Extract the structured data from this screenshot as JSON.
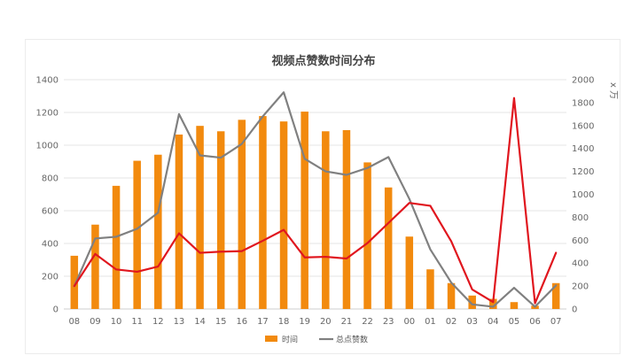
{
  "chart_data": {
    "type": "bar",
    "title": "视频点赞数时间分布",
    "categories": [
      "08",
      "09",
      "10",
      "11",
      "12",
      "13",
      "14",
      "15",
      "16",
      "17",
      "18",
      "19",
      "20",
      "21",
      "22",
      "23",
      "00",
      "01",
      "02",
      "03",
      "04",
      "05",
      "06",
      "07"
    ],
    "left_axis": {
      "ylim": [
        0,
        1400
      ],
      "ticks": [
        0,
        200,
        400,
        600,
        800,
        1000,
        1200,
        1400
      ]
    },
    "right_axis": {
      "ylim": [
        0,
        2000
      ],
      "ticks": [
        0,
        200,
        400,
        600,
        800,
        1000,
        1200,
        1400,
        1600,
        1800,
        2000
      ],
      "unit_label": "x 万"
    },
    "series": [
      {
        "name": "时间",
        "kind": "bar",
        "axis": "left",
        "color": "#f28a0e",
        "values": [
          325,
          515,
          752,
          905,
          942,
          1065,
          1118,
          1085,
          1155,
          1178,
          1145,
          1205,
          1085,
          1092,
          895,
          742,
          442,
          242,
          158,
          82,
          62,
          42,
          20,
          158
        ]
      },
      {
        "name": "总点赞数",
        "kind": "line",
        "axis": "right",
        "color": "#808080",
        "values": [
          200,
          615,
          630,
          700,
          840,
          1700,
          1340,
          1320,
          1440,
          1680,
          1890,
          1310,
          1200,
          1170,
          1230,
          1325,
          960,
          520,
          230,
          40,
          20,
          185,
          20,
          205
        ]
      },
      {
        "kind": "line",
        "axis": "right",
        "color": "#e0161e",
        "values": [
          200,
          480,
          345,
          325,
          370,
          660,
          490,
          500,
          505,
          595,
          690,
          450,
          455,
          440,
          575,
          750,
          925,
          900,
          590,
          170,
          60,
          1840,
          50,
          490
        ]
      }
    ],
    "grid": true,
    "legend_position": "bottom"
  }
}
